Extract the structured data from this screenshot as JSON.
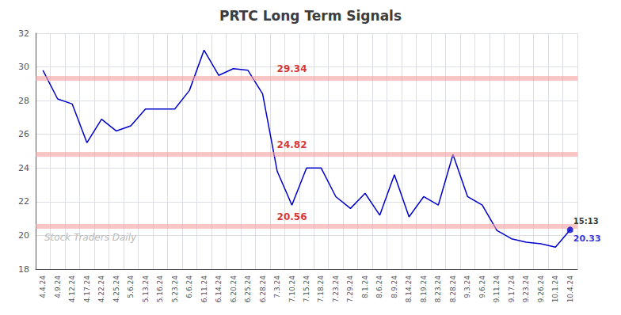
{
  "chart_data": {
    "type": "line",
    "title": "PRTC Long Term Signals",
    "categories": [
      "4.4.24",
      "4.9.24",
      "4.12.24",
      "4.17.24",
      "4.22.24",
      "4.25.24",
      "5.6.24",
      "5.13.24",
      "5.16.24",
      "5.23.24",
      "6.6.24",
      "6.11.24",
      "6.14.24",
      "6.20.24",
      "6.25.24",
      "6.28.24",
      "7.3.24",
      "7.10.24",
      "7.15.24",
      "7.18.24",
      "7.23.24",
      "7.29.24",
      "8.1.24",
      "8.6.24",
      "8.9.24",
      "8.14.24",
      "8.19.24",
      "8.23.24",
      "8.28.24",
      "9.3.24",
      "9.6.24",
      "9.11.24",
      "9.17.24",
      "9.23.24",
      "9.26.24",
      "10.1.24",
      "10.4.24"
    ],
    "values": [
      29.8,
      28.1,
      27.8,
      25.5,
      26.9,
      26.2,
      26.5,
      27.5,
      27.5,
      27.5,
      28.6,
      31.0,
      29.5,
      29.9,
      29.8,
      28.4,
      23.8,
      21.8,
      24.0,
      24.0,
      22.3,
      21.6,
      22.5,
      21.2,
      23.6,
      21.1,
      22.3,
      21.8,
      24.8,
      22.3,
      21.8,
      20.3,
      19.8,
      19.6,
      19.5,
      19.3,
      20.33
    ],
    "color": "#0000cc",
    "ylim": [
      18,
      32
    ],
    "yticks": [
      18,
      20,
      22,
      24,
      26,
      28,
      30,
      32
    ],
    "grid": true,
    "hlines": [
      {
        "value": 29.34,
        "label": "29.34",
        "x": "7.10.24",
        "color": "#f5a0a0",
        "label_color": "#cc0000"
      },
      {
        "value": 24.82,
        "label": "24.82",
        "x": "7.10.24",
        "color": "#f5a0a0",
        "label_color": "#cc0000"
      },
      {
        "value": 20.56,
        "label": "20.56",
        "x": "7.10.24",
        "color": "#f5a0a0",
        "label_color": "#cc0000"
      }
    ],
    "last_point": {
      "x": "10.4.24",
      "y": 20.33,
      "color": "#0000cc"
    },
    "annotations": [
      {
        "text": "15:13",
        "x": "10.4.24",
        "y": 20.33,
        "position": "above",
        "color": "#000000"
      },
      {
        "text": "20.33",
        "x": "10.4.24",
        "y": 20.33,
        "position": "below",
        "color": "#0000cc"
      }
    ],
    "watermark": {
      "text": "Stock Traders Daily",
      "color": "#bbbbbb"
    }
  }
}
